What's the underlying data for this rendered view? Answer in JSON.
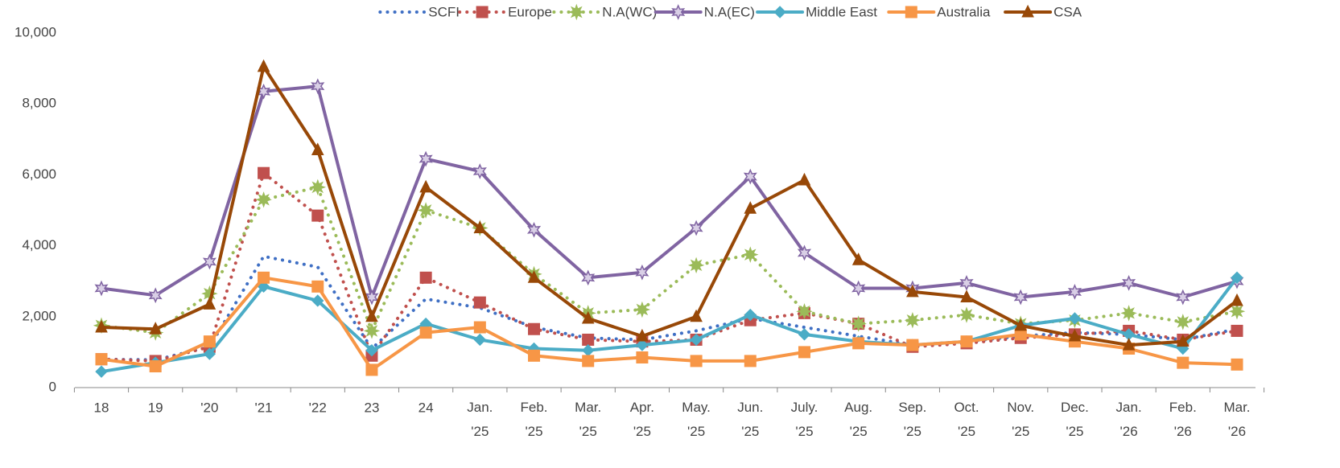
{
  "chart_data": {
    "type": "line",
    "categories": [
      "18",
      "19",
      "'20",
      "'21",
      "'22",
      "23",
      "24",
      "Jan. '25",
      "Feb. '25",
      "Mar. '25",
      "Apr. '25",
      "May. '25",
      "Jun. '25",
      "July. '25",
      "Aug. '25",
      "Sep. '25",
      "Oct. '25",
      "Nov. '25",
      "Dec. '25",
      "Jan. '26",
      "Feb. '26",
      "Mar. '26"
    ],
    "series": [
      {
        "name": "SCFI",
        "color": "#3f6fc4",
        "dash": "dotted",
        "marker": "none",
        "values": [
          800,
          780,
          1150,
          3700,
          3400,
          1100,
          2500,
          2250,
          1700,
          1400,
          1350,
          1600,
          1950,
          1700,
          1450,
          1200,
          1300,
          1450,
          1550,
          1500,
          1350,
          1650
        ]
      },
      {
        "name": "Europe",
        "color": "#c0504d",
        "dash": "dotted",
        "marker": "square",
        "values": [
          800,
          750,
          1150,
          6050,
          4850,
          900,
          3100,
          2400,
          1650,
          1350,
          1300,
          1350,
          1900,
          2100,
          1800,
          1150,
          1250,
          1400,
          1500,
          1600,
          1350,
          1600
        ]
      },
      {
        "name": "N.A(WC)",
        "color": "#9bbb59",
        "dash": "dotted",
        "marker": "star",
        "values": [
          1750,
          1550,
          2650,
          5300,
          5650,
          1600,
          5000,
          4500,
          3200,
          2100,
          2200,
          3450,
          3750,
          2150,
          1800,
          1900,
          2050,
          1800,
          1900,
          2100,
          1850,
          2150
        ]
      },
      {
        "name": "N.A(EC)",
        "color": "#8064a2",
        "dash": "solid",
        "marker": "cross",
        "values": [
          2800,
          2600,
          3550,
          8350,
          8500,
          2550,
          6450,
          6100,
          4450,
          3100,
          3250,
          4500,
          5950,
          3800,
          2800,
          2800,
          2950,
          2550,
          2700,
          2950,
          2550,
          3000
        ]
      },
      {
        "name": "Middle East",
        "color": "#4bacc6",
        "dash": "solid",
        "marker": "diamond",
        "values": [
          450,
          700,
          950,
          2850,
          2450,
          1050,
          1800,
          1350,
          1100,
          1050,
          1200,
          1350,
          2050,
          1500,
          1300,
          1200,
          1300,
          1750,
          1950,
          1500,
          1100,
          3100
        ]
      },
      {
        "name": "Australia",
        "color": "#f79646",
        "dash": "solid",
        "marker": "square",
        "values": [
          800,
          600,
          1300,
          3100,
          2850,
          500,
          1550,
          1700,
          900,
          750,
          850,
          750,
          750,
          1000,
          1250,
          1200,
          1300,
          1500,
          1300,
          1100,
          700,
          650
        ]
      },
      {
        "name": "CSA",
        "color": "#984807",
        "dash": "solid",
        "marker": "triangle",
        "values": [
          1700,
          1650,
          2350,
          9050,
          6700,
          2000,
          5650,
          4500,
          3100,
          1950,
          1450,
          2000,
          5050,
          5850,
          3600,
          2700,
          2550,
          1750,
          1450,
          1200,
          1300,
          2450
        ]
      }
    ],
    "ylim": [
      0,
      10000
    ],
    "yticks": [
      0,
      {
        "value": 2000,
        "label": "2,000"
      },
      {
        "value": 4000,
        "label": "4,000"
      },
      {
        "value": 6000,
        "label": "6,000"
      },
      {
        "value": 8000,
        "label": "8,000"
      },
      {
        "value": 10000,
        "label": "10,000"
      }
    ],
    "legend": "top",
    "grid": false
  }
}
